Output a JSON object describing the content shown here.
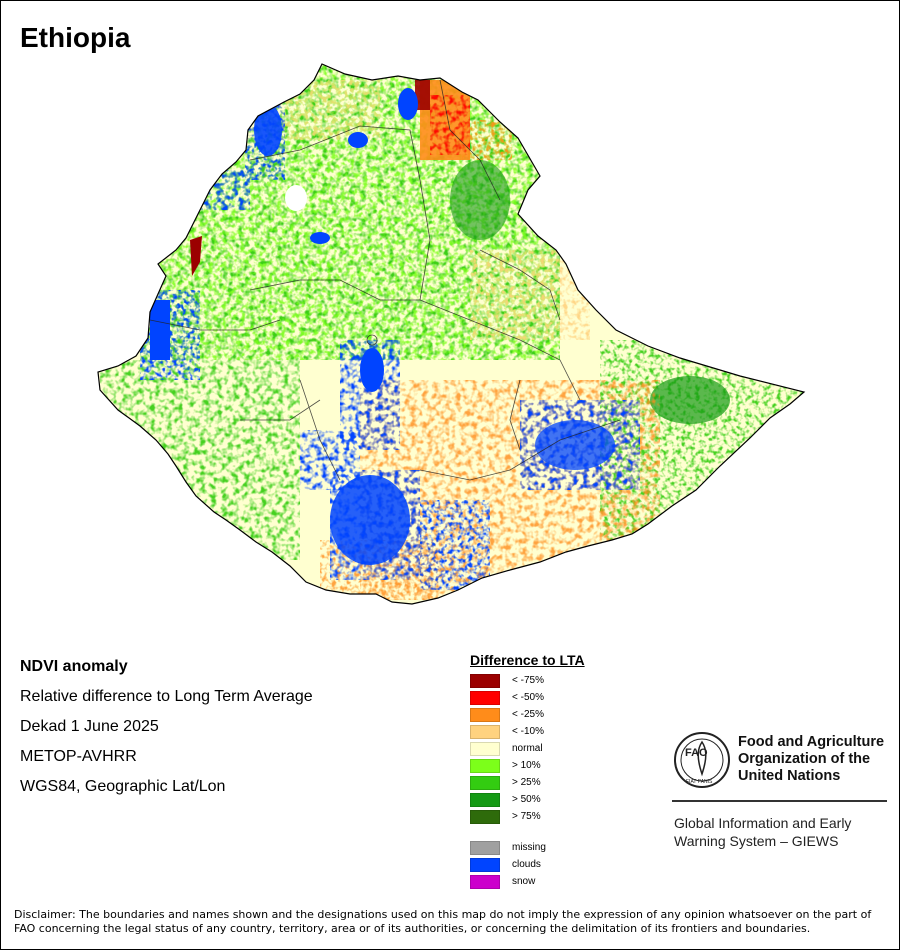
{
  "map": {
    "title": "Ethiopia"
  },
  "info": {
    "lines": [
      "NDVI anomaly",
      "Relative difference to Long Term Average",
      "Dekad 1 June 2025",
      "METOP-AVHRR",
      "WGS84, Geographic Lat/Lon"
    ]
  },
  "legend": {
    "title": "Difference to LTA",
    "items": [
      {
        "label": "< -75%",
        "color": "#9b0000"
      },
      {
        "label": "< -50%",
        "color": "#ff0000"
      },
      {
        "label": "< -25%",
        "color": "#ff8c1a"
      },
      {
        "label": "< -10%",
        "color": "#ffd27f"
      },
      {
        "label": "normal",
        "color": "#ffffd0"
      },
      {
        "label": "> 10%",
        "color": "#7cff1a"
      },
      {
        "label": "> 25%",
        "color": "#33cc11"
      },
      {
        "label": "> 50%",
        "color": "#159a15"
      },
      {
        "label": "> 75%",
        "color": "#2e6b0b"
      }
    ],
    "extra": [
      {
        "label": "missing",
        "color": "#a0a0a0"
      },
      {
        "label": "clouds",
        "color": "#0044ff"
      },
      {
        "label": "snow",
        "color": "#cc00cc"
      }
    ]
  },
  "logo": {
    "letters": "FAO",
    "motto": "FIAT PANIS",
    "org_name": "Food and Agriculture Organization of the United Nations",
    "system_name": "Global Information and Early Warning System – GIEWS"
  },
  "disclaimer": "Disclaimer: The boundaries and names shown and the designations used on this map do not imply the expression of any opinion whatsoever on the part of FAO concerning the legal status of any country, territory, area or of its authorities, or concerning the delimitation of its frontiers and boundaries."
}
